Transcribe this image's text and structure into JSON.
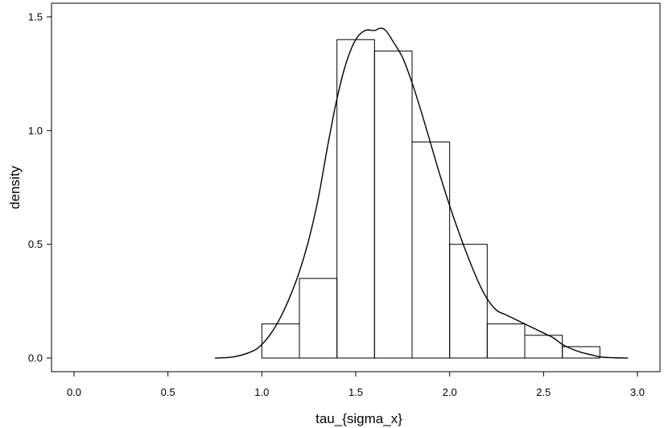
{
  "chart_data": {
    "type": "bar",
    "subtype": "histogram-with-density-curve",
    "xlabel": "tau_{sigma_x}",
    "ylabel": "density",
    "xlim": [
      -0.12,
      3.12
    ],
    "ylim": [
      -0.06,
      1.56
    ],
    "x_ticks": [
      {
        "value": 0.0,
        "label": "0.0"
      },
      {
        "value": 0.5,
        "label": "0.5"
      },
      {
        "value": 1.0,
        "label": "1.0"
      },
      {
        "value": 1.5,
        "label": "1.5"
      },
      {
        "value": 2.0,
        "label": "2.0"
      },
      {
        "value": 2.5,
        "label": "2.5"
      },
      {
        "value": 3.0,
        "label": "3.0"
      }
    ],
    "y_ticks": [
      {
        "value": 0.0,
        "label": "0.0"
      },
      {
        "value": 0.5,
        "label": "0.5"
      },
      {
        "value": 1.0,
        "label": "1.0"
      },
      {
        "value": 1.5,
        "label": "1.5"
      }
    ],
    "bins": [
      {
        "x0": 1.0,
        "x1": 1.2,
        "value": 0.15
      },
      {
        "x0": 1.2,
        "x1": 1.4,
        "value": 0.35
      },
      {
        "x0": 1.4,
        "x1": 1.6,
        "value": 1.4
      },
      {
        "x0": 1.6,
        "x1": 1.8,
        "value": 1.35
      },
      {
        "x0": 1.8,
        "x1": 2.0,
        "value": 0.95
      },
      {
        "x0": 2.0,
        "x1": 2.2,
        "value": 0.5
      },
      {
        "x0": 2.2,
        "x1": 2.4,
        "value": 0.15
      },
      {
        "x0": 2.4,
        "x1": 2.6,
        "value": 0.1
      },
      {
        "x0": 2.6,
        "x1": 2.8,
        "value": 0.05
      }
    ],
    "density_curve": {
      "x": [
        0.75,
        0.85,
        0.95,
        1.0,
        1.05,
        1.1,
        1.15,
        1.2,
        1.25,
        1.3,
        1.35,
        1.4,
        1.45,
        1.5,
        1.55,
        1.6,
        1.63,
        1.66,
        1.7,
        1.75,
        1.8,
        1.85,
        1.9,
        1.95,
        2.0,
        2.05,
        2.1,
        2.15,
        2.2,
        2.25,
        2.3,
        2.35,
        2.4,
        2.45,
        2.5,
        2.55,
        2.6,
        2.65,
        2.7,
        2.75,
        2.8,
        2.85,
        2.95
      ],
      "y": [
        0.0,
        0.005,
        0.03,
        0.06,
        0.11,
        0.18,
        0.27,
        0.38,
        0.52,
        0.7,
        0.93,
        1.14,
        1.3,
        1.4,
        1.44,
        1.44,
        1.45,
        1.44,
        1.39,
        1.32,
        1.21,
        1.08,
        0.94,
        0.8,
        0.67,
        0.55,
        0.44,
        0.34,
        0.26,
        0.21,
        0.19,
        0.17,
        0.15,
        0.13,
        0.11,
        0.09,
        0.06,
        0.04,
        0.025,
        0.015,
        0.005,
        0.002,
        0.0
      ]
    },
    "grid": false,
    "legend": "none"
  }
}
